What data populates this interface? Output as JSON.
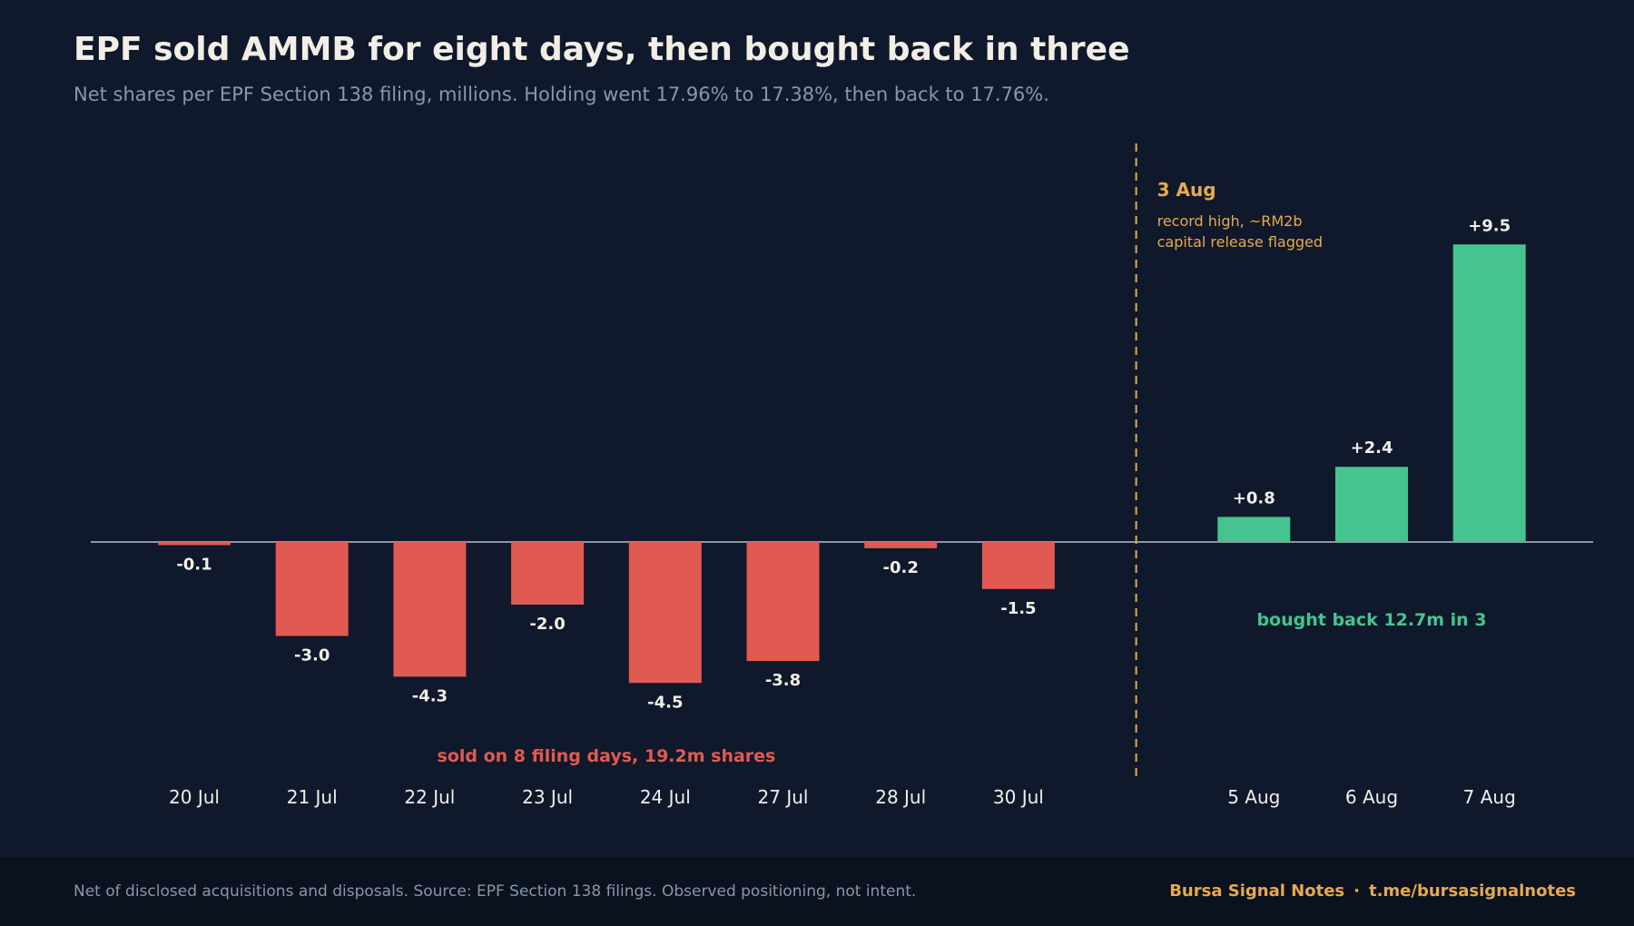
{
  "title": "EPF sold AMMB for eight days, then bought back in three",
  "subtitle": "Net shares per EPF Section 138 filing, millions. Holding went 17.96% to 17.38%, then back to 17.76%.",
  "colors": {
    "background": "#0f192b",
    "negative": "#e05a51",
    "positive": "#45c48f",
    "accent": "#e9a94c",
    "text": "#f2eee6",
    "muted": "#8a97a8",
    "axis": "#8a97a8"
  },
  "chart_data": {
    "type": "bar",
    "categories": [
      "20 Jul",
      "21 Jul",
      "22 Jul",
      "23 Jul",
      "24 Jul",
      "27 Jul",
      "28 Jul",
      "30 Jul",
      "5 Aug",
      "6 Aug",
      "7 Aug"
    ],
    "values": [
      -0.1,
      -3.0,
      -4.3,
      -2.0,
      -4.5,
      -3.8,
      -0.2,
      -1.5,
      0.8,
      2.4,
      9.5
    ],
    "data_labels": [
      "-0.1",
      "-3.0",
      "-4.3",
      "-2.0",
      "-4.5",
      "-3.8",
      "-0.2",
      "-1.5",
      "+0.8",
      "+2.4",
      "+9.5"
    ],
    "ylim": [
      -7.2,
      12.8
    ],
    "grid": false,
    "event_marker": {
      "position_after": "30 Jul",
      "title": "3 Aug",
      "lines": [
        "record high, ~RM2b",
        "capital release flagged"
      ]
    },
    "annotations": {
      "sell_phase": "sold on 8 filing days, 19.2m shares",
      "buy_phase": "bought back 12.7m in 3"
    }
  },
  "footer": {
    "note": "Net of disclosed acquisitions and disposals. Source: EPF Section 138 filings. Observed positioning, not intent.",
    "brand": "Bursa Signal Notes",
    "separator": "·",
    "link": "t.me/bursasignalnotes"
  }
}
